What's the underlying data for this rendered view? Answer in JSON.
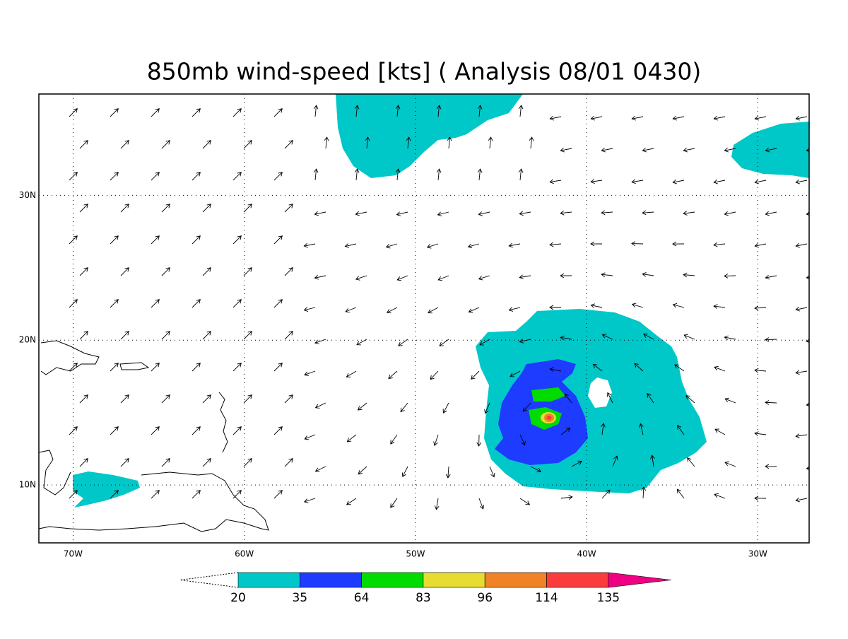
{
  "map": {
    "title": "850mb wind-speed [kts] (  Analysis  08/01 0430)",
    "lon_range": [
      -72,
      -27
    ],
    "lat_range": [
      6,
      37
    ],
    "lon_ticks": [
      {
        "value": -70,
        "label": "70W"
      },
      {
        "value": -60,
        "label": "60W"
      },
      {
        "value": -50,
        "label": "50W"
      },
      {
        "value": -40,
        "label": "40W"
      },
      {
        "value": -30,
        "label": "30W"
      }
    ],
    "lat_ticks": [
      {
        "value": 10,
        "label": "10N"
      },
      {
        "value": 20,
        "label": "20N"
      },
      {
        "value": 30,
        "label": "30N"
      }
    ],
    "colorbar": {
      "levels": [
        20,
        35,
        64,
        83,
        96,
        114,
        135
      ],
      "colors": [
        "#00c8c8",
        "#1e3cff",
        "#00dc00",
        "#e6dc32",
        "#f08228",
        "#fa3c3c",
        "#f00082"
      ]
    }
  }
}
